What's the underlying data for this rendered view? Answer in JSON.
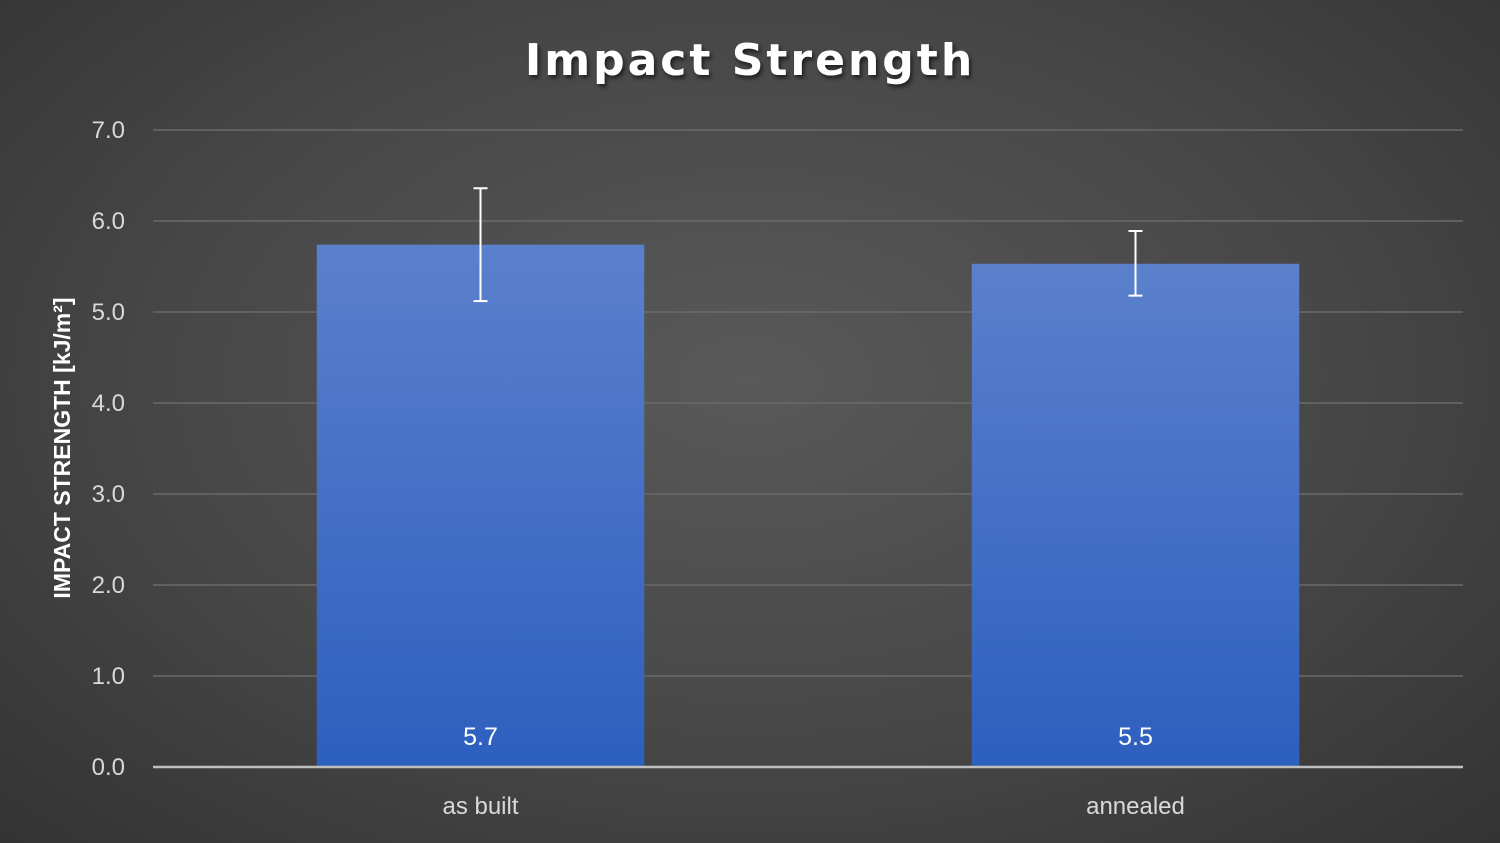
{
  "chart_data": {
    "type": "bar",
    "title": "Impact Strength",
    "xlabel": "",
    "ylabel": "IMPACT STRENGTH [kJ/m²]",
    "categories": [
      "as built",
      "annealed"
    ],
    "values": [
      5.74,
      5.53
    ],
    "data_labels": [
      "5.7",
      "5.5"
    ],
    "error_bars": [
      {
        "low": 5.12,
        "high": 6.36
      },
      {
        "low": 5.18,
        "high": 5.89
      }
    ],
    "ylim": [
      0,
      7
    ],
    "yticks": [
      "0.0",
      "1.0",
      "2.0",
      "3.0",
      "4.0",
      "5.0",
      "6.0",
      "7.0"
    ],
    "grid": true,
    "legend": "none",
    "colors": {
      "bar_top": "#5b80cc",
      "bar_bottom": "#2d5fbf",
      "gridline": "#6a6a6a",
      "axis_line": "#bfbfbf",
      "error_bar": "#ffffff"
    }
  }
}
